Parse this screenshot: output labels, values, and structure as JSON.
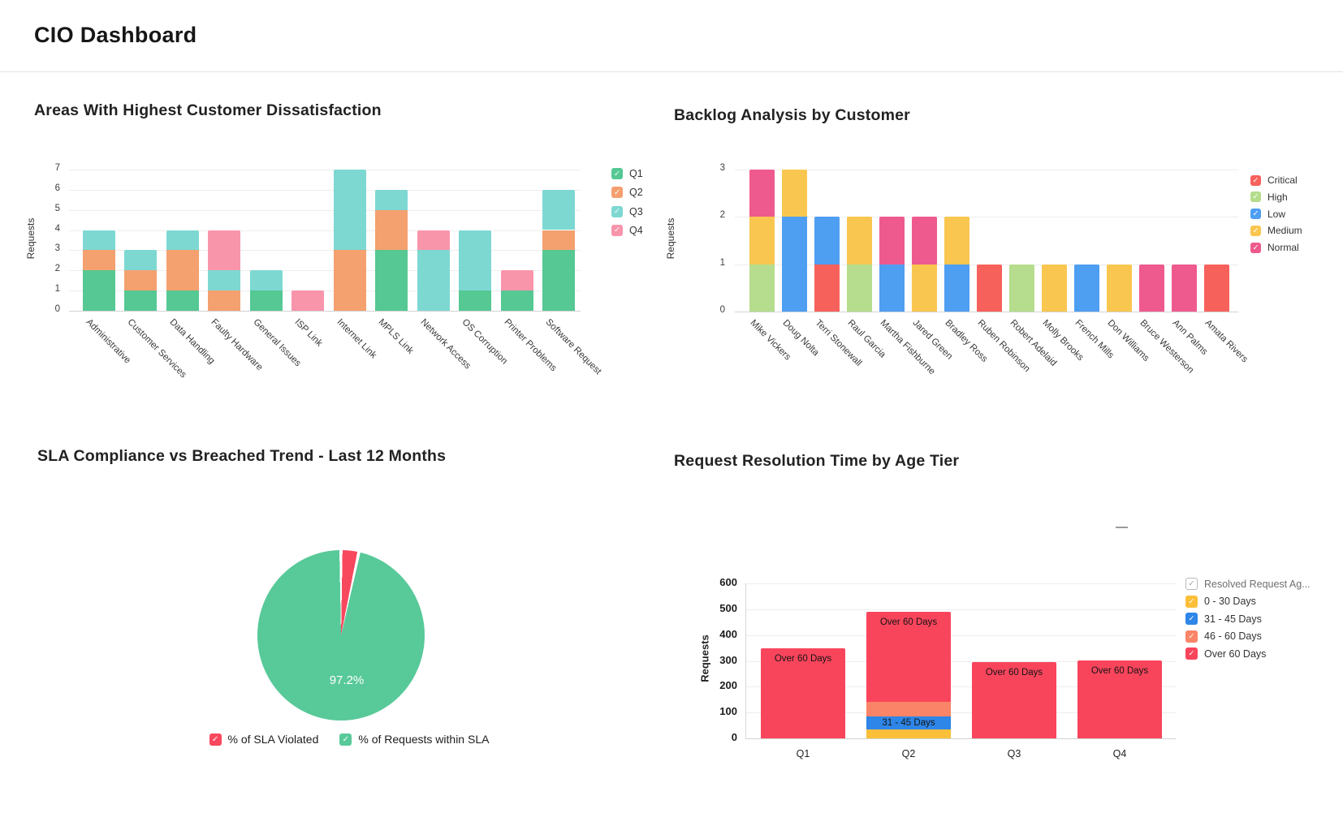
{
  "page": {
    "title": "CIO Dashboard"
  },
  "chart_data": [
    {
      "id": "dissatisfaction",
      "type": "bar",
      "stacked": true,
      "title": "Areas With Highest Customer Dissatisfaction",
      "xlabel": "",
      "ylabel": "Requests",
      "ylim": [
        0,
        7
      ],
      "yticks": [
        0,
        1,
        2,
        3,
        4,
        5,
        6,
        7
      ],
      "grid": true,
      "legend_position": "right",
      "categories": [
        "Administrative",
        "Customer Services",
        "Data Handling",
        "Faulty Hardware",
        "General Issues",
        "ISP Link",
        "Internet Link",
        "MPLS Link",
        "Network Access",
        "OS Corruption",
        "Printer Problems",
        "Software Request"
      ],
      "series": [
        {
          "name": "Q1",
          "color": "#55c894",
          "values": [
            2,
            1,
            1,
            0,
            1,
            0,
            0,
            3,
            0,
            1,
            1,
            3
          ]
        },
        {
          "name": "Q2",
          "color": "#f5a06f",
          "values": [
            1,
            1,
            2,
            1,
            0,
            0,
            3,
            2,
            0,
            0,
            0,
            1
          ]
        },
        {
          "name": "Q3",
          "color": "#7dd8d2",
          "values": [
            1,
            1,
            1,
            1,
            1,
            0,
            4,
            1,
            3,
            3,
            0,
            2
          ]
        },
        {
          "name": "Q4",
          "color": "#f995ab",
          "values": [
            0,
            0,
            0,
            2,
            0,
            1,
            0,
            0,
            1,
            0,
            1,
            0
          ]
        }
      ]
    },
    {
      "id": "backlog",
      "type": "bar",
      "stacked": true,
      "title": "Backlog Analysis by Customer",
      "xlabel": "",
      "ylabel": "Requests",
      "ylim": [
        0,
        3
      ],
      "yticks": [
        0,
        1,
        2,
        3
      ],
      "grid": true,
      "legend_position": "right",
      "categories": [
        "Mike Vickers",
        "Doug Nolta",
        "Terri Stonewall",
        "Raul Garcia",
        "Martha Fishburne",
        "Jared Green",
        "Bradley Ross",
        "Ruben Robinson",
        "Robert Adelaid",
        "Molly Brooks",
        "French Mills",
        "Don Williams",
        "Bruce Westerson",
        "Ann Palms",
        "Amata Rivers"
      ],
      "series": [
        {
          "name": "Critical",
          "color": "#f7615c",
          "values": [
            0,
            0,
            1,
            0,
            0,
            0,
            0,
            1,
            0,
            0,
            0,
            0,
            0,
            0,
            1
          ]
        },
        {
          "name": "High",
          "color": "#b5dd8d",
          "values": [
            1,
            0,
            0,
            1,
            0,
            0,
            0,
            0,
            1,
            0,
            0,
            0,
            0,
            0,
            0
          ]
        },
        {
          "name": "Low",
          "color": "#4e9ef2",
          "values": [
            0,
            2,
            1,
            0,
            1,
            0,
            1,
            0,
            0,
            0,
            1,
            0,
            0,
            0,
            0
          ]
        },
        {
          "name": "Medium",
          "color": "#f9c750",
          "values": [
            1,
            1,
            0,
            1,
            0,
            1,
            1,
            0,
            0,
            1,
            0,
            1,
            0,
            0,
            0
          ]
        },
        {
          "name": "Normal",
          "color": "#ee5a8e",
          "values": [
            1,
            0,
            0,
            0,
            1,
            1,
            0,
            0,
            0,
            0,
            0,
            0,
            1,
            1,
            0
          ]
        }
      ]
    },
    {
      "id": "sla",
      "type": "pie",
      "title": "SLA Compliance vs Breached Trend - Last 12 Months",
      "legend_position": "bottom",
      "data_label": "97.2%",
      "slices": [
        {
          "label": "% of SLA Violated",
          "value": 2.8,
          "color": "#f8485e"
        },
        {
          "label": "% of Requests within SLA",
          "value": 97.2,
          "color": "#58c999"
        }
      ]
    },
    {
      "id": "resolution",
      "type": "bar",
      "stacked": true,
      "title": "Request Resolution Time by Age Tier",
      "xlabel": "",
      "ylabel": "Requests",
      "ylim": [
        0,
        600
      ],
      "yticks": [
        0,
        100,
        200,
        300,
        400,
        500,
        600
      ],
      "grid": true,
      "legend_position": "right",
      "legend_header": "Resolved Request Ag...",
      "categories": [
        "Q1",
        "Q2",
        "Q3",
        "Q4"
      ],
      "series": [
        {
          "name": "0 - 30 Days",
          "color": "#fbbf3a",
          "values": [
            0,
            35,
            0,
            0
          ]
        },
        {
          "name": "31 - 45 Days",
          "color": "#2e86e8",
          "values": [
            0,
            50,
            0,
            0
          ]
        },
        {
          "name": "46 - 60 Days",
          "color": "#fa8467",
          "values": [
            0,
            55,
            0,
            0
          ]
        },
        {
          "name": "Over 60 Days",
          "color": "#f9455c",
          "values": [
            350,
            350,
            295,
            303
          ]
        }
      ],
      "segment_labels": [
        {
          "bar": 0,
          "series": "Over 60 Days",
          "text": "Over 60 Days",
          "align": "top"
        },
        {
          "bar": 1,
          "series": "Over 60 Days",
          "text": "Over 60 Days",
          "align": "top"
        },
        {
          "bar": 2,
          "series": "Over 60 Days",
          "text": "Over 60 Days",
          "align": "top"
        },
        {
          "bar": 3,
          "series": "Over 60 Days",
          "text": "Over 60 Days",
          "align": "top"
        },
        {
          "bar": 1,
          "series": "31 - 45 Days",
          "text": "31 - 45 Days",
          "align": "middle"
        }
      ]
    }
  ]
}
